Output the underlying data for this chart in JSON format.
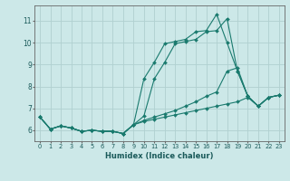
{
  "xlabel": "Humidex (Indice chaleur)",
  "bg_color": "#cce8e8",
  "grid_color": "#b0d0d0",
  "line_color": "#1a7a6e",
  "xlim": [
    -0.5,
    23.5
  ],
  "ylim": [
    5.5,
    11.7
  ],
  "yticks": [
    6,
    7,
    8,
    9,
    10,
    11
  ],
  "xticks": [
    0,
    1,
    2,
    3,
    4,
    5,
    6,
    7,
    8,
    9,
    10,
    11,
    12,
    13,
    14,
    15,
    16,
    17,
    18,
    19,
    20,
    21,
    22,
    23
  ],
  "lines": [
    [
      6.6,
      6.05,
      6.2,
      6.1,
      5.95,
      6.0,
      5.95,
      5.95,
      5.85,
      6.25,
      8.35,
      9.1,
      9.95,
      10.05,
      10.15,
      10.5,
      10.55,
      11.3,
      10.0,
      8.7,
      7.55,
      7.1,
      7.5,
      7.6
    ],
    [
      6.6,
      6.05,
      6.2,
      6.1,
      5.95,
      6.0,
      5.95,
      5.95,
      5.85,
      6.25,
      6.65,
      8.35,
      9.1,
      9.95,
      10.05,
      10.15,
      10.5,
      10.55,
      11.1,
      8.7,
      7.55,
      7.1,
      7.5,
      7.6
    ],
    [
      6.6,
      6.05,
      6.2,
      6.1,
      5.95,
      6.0,
      5.95,
      5.95,
      5.85,
      6.25,
      6.45,
      6.6,
      6.75,
      6.9,
      7.1,
      7.3,
      7.55,
      7.75,
      8.7,
      8.85,
      7.55,
      7.1,
      7.5,
      7.6
    ],
    [
      6.6,
      6.05,
      6.2,
      6.1,
      5.95,
      6.0,
      5.95,
      5.95,
      5.85,
      6.25,
      6.4,
      6.5,
      6.6,
      6.7,
      6.8,
      6.9,
      7.0,
      7.1,
      7.2,
      7.3,
      7.5,
      7.1,
      7.5,
      7.6
    ]
  ]
}
